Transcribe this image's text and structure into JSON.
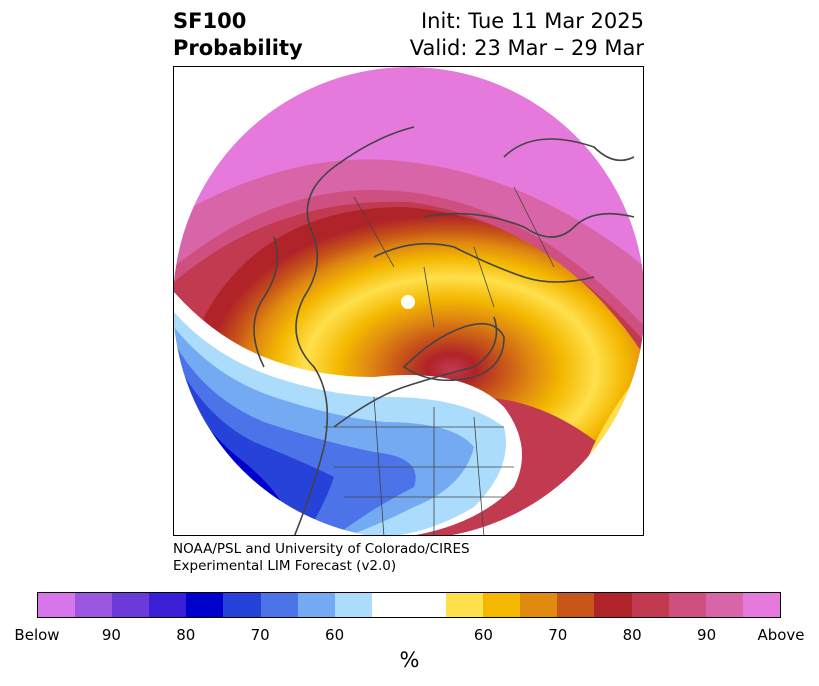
{
  "title": {
    "left_line1": "SF100",
    "left_line2": "Probability",
    "right_line1": "Init: Tue 11 Mar 2025",
    "right_line2": "Valid: 23 Mar – 29 Mar"
  },
  "credit": {
    "line1": "NOAA/PSL and University of Colorado/CIRES",
    "line2": "Experimental LIM Forecast (v2.0)"
  },
  "colorbar": {
    "colors": [
      "#d776ea",
      "#9b57e0",
      "#6a3bd8",
      "#3a1fd6",
      "#0000cd",
      "#2742d9",
      "#4c74e8",
      "#74aaf2",
      "#acdcfb",
      "#ffffff",
      "#ffe04c",
      "#f4b800",
      "#e08a10",
      "#c85618",
      "#b02328",
      "#c23a50",
      "#cf5080",
      "#d965a9",
      "#e679dc"
    ],
    "tick_labels": [
      "Below",
      "90",
      "80",
      "70",
      "60",
      "60",
      "70",
      "80",
      "90",
      "Above"
    ],
    "unit": "%"
  },
  "map": {
    "projection": "north-polar-stereographic",
    "region_labels_shown": false
  }
}
